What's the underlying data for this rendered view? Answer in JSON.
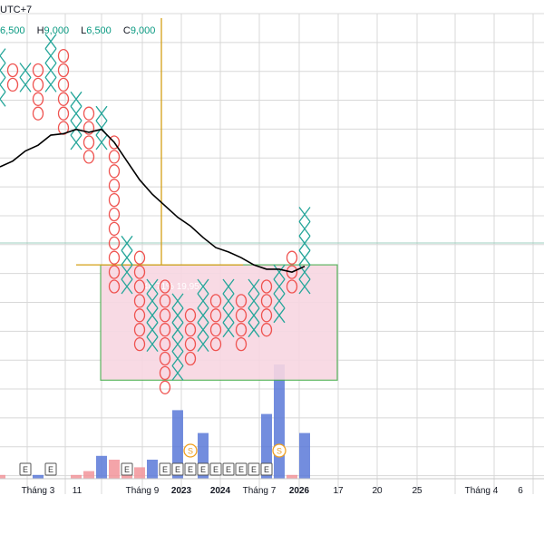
{
  "header": {
    "timezone": "UTC+7",
    "ohlc": [
      {
        "key": "",
        "value": "6,500"
      },
      {
        "key": "H",
        "value": "9,000"
      },
      {
        "key": "L",
        "value": "6,500"
      },
      {
        "key": "C",
        "value": "9,000"
      }
    ]
  },
  "rect_label": "48.71% 19,955",
  "x_axis_labels": [
    {
      "text": "Tháng 3",
      "bold": false
    },
    {
      "text": "11",
      "bold": false
    },
    {
      "text": "Tháng 9",
      "bold": false
    },
    {
      "text": "2023",
      "bold": true
    },
    {
      "text": "2024",
      "bold": true
    },
    {
      "text": "Tháng 7",
      "bold": false
    },
    {
      "text": "2026",
      "bold": true
    },
    {
      "text": "17",
      "bold": false
    },
    {
      "text": "20",
      "bold": false
    },
    {
      "text": "25",
      "bold": false
    },
    {
      "text": "Tháng 4",
      "bold": false
    },
    {
      "text": "6",
      "bold": false
    }
  ],
  "event_markers": {
    "earnings_label": "E",
    "dividend_label": "S"
  },
  "chart_data": {
    "type": "point-and-figure",
    "columns": [
      {
        "type": "X",
        "rows": [
          4,
          5,
          6,
          7
        ]
      },
      {
        "type": "O",
        "rows": [
          5,
          6
        ]
      },
      {
        "type": "X",
        "rows": [
          5,
          6
        ]
      },
      {
        "type": "O",
        "rows": [
          5,
          6,
          7,
          8
        ]
      },
      {
        "type": "X",
        "rows": [
          3,
          4,
          5,
          6
        ]
      },
      {
        "type": "O",
        "rows": [
          4,
          5,
          6,
          7,
          8,
          9
        ]
      },
      {
        "type": "X",
        "rows": [
          7,
          8,
          9,
          10
        ]
      },
      {
        "type": "O",
        "rows": [
          8,
          9,
          10,
          11
        ]
      },
      {
        "type": "X",
        "rows": [
          8,
          9,
          10
        ]
      },
      {
        "type": "O",
        "rows": [
          10,
          11,
          12,
          13,
          14,
          15,
          16,
          17,
          18,
          19,
          20
        ]
      },
      {
        "type": "X",
        "rows": [
          17,
          18,
          19,
          20
        ]
      },
      {
        "type": "O",
        "rows": [
          18,
          19,
          20,
          21,
          22,
          23,
          24
        ]
      },
      {
        "type": "X",
        "rows": [
          20,
          21,
          22,
          23,
          24
        ]
      },
      {
        "type": "O",
        "rows": [
          20,
          21,
          22,
          23,
          24,
          25,
          26,
          27
        ]
      },
      {
        "type": "X",
        "rows": [
          21,
          22,
          23,
          24,
          25,
          26
        ]
      },
      {
        "type": "O",
        "rows": [
          22,
          23,
          24,
          25
        ]
      },
      {
        "type": "X",
        "rows": [
          20,
          21,
          22,
          23,
          24
        ]
      },
      {
        "type": "O",
        "rows": [
          21,
          22,
          23,
          24
        ]
      },
      {
        "type": "X",
        "rows": [
          20,
          21,
          22,
          23
        ]
      },
      {
        "type": "O",
        "rows": [
          21,
          22,
          23,
          24
        ]
      },
      {
        "type": "X",
        "rows": [
          20,
          21,
          22,
          23
        ]
      },
      {
        "type": "O",
        "rows": [
          20,
          21,
          22,
          23
        ]
      },
      {
        "type": "X",
        "rows": [
          19,
          20,
          21,
          22
        ]
      },
      {
        "type": "O",
        "rows": [
          18,
          19,
          20
        ]
      },
      {
        "type": "X",
        "rows": [
          15,
          16,
          17,
          18,
          19,
          20
        ]
      }
    ],
    "moving_average": [
      {
        "col": 0,
        "row": 11.7
      },
      {
        "col": 1,
        "row": 11.3
      },
      {
        "col": 2,
        "row": 10.6
      },
      {
        "col": 3,
        "row": 10.2
      },
      {
        "col": 4,
        "row": 9.5
      },
      {
        "col": 5,
        "row": 9.4
      },
      {
        "col": 6,
        "row": 9.1
      },
      {
        "col": 7,
        "row": 9.3
      },
      {
        "col": 8,
        "row": 9.1
      },
      {
        "col": 9,
        "row": 10.0
      },
      {
        "col": 10,
        "row": 11.3
      },
      {
        "col": 11,
        "row": 12.6
      },
      {
        "col": 12,
        "row": 13.6
      },
      {
        "col": 13,
        "row": 14.4
      },
      {
        "col": 14,
        "row": 15.2
      },
      {
        "col": 15,
        "row": 15.8
      },
      {
        "col": 16,
        "row": 16.6
      },
      {
        "col": 17,
        "row": 17.3
      },
      {
        "col": 18,
        "row": 17.6
      },
      {
        "col": 19,
        "row": 18.0
      },
      {
        "col": 20,
        "row": 18.5
      },
      {
        "col": 21,
        "row": 18.8
      },
      {
        "col": 22,
        "row": 18.8
      },
      {
        "col": 23,
        "row": 19.0
      },
      {
        "col": 24,
        "row": 18.6
      }
    ],
    "volume": [
      {
        "col": 0,
        "value": 1,
        "dir": "down"
      },
      {
        "col": 3,
        "value": 1,
        "dir": "up"
      },
      {
        "col": 6,
        "value": 1,
        "dir": "down"
      },
      {
        "col": 7,
        "value": 2,
        "dir": "down"
      },
      {
        "col": 8,
        "value": 6,
        "dir": "up"
      },
      {
        "col": 9,
        "value": 5,
        "dir": "down"
      },
      {
        "col": 10,
        "value": 3,
        "dir": "down"
      },
      {
        "col": 11,
        "value": 3,
        "dir": "down"
      },
      {
        "col": 12,
        "value": 5,
        "dir": "up"
      },
      {
        "col": 14,
        "value": 18,
        "dir": "up"
      },
      {
        "col": 16,
        "value": 12,
        "dir": "up"
      },
      {
        "col": 21,
        "value": 17,
        "dir": "up"
      },
      {
        "col": 22,
        "value": 30,
        "dir": "up"
      },
      {
        "col": 23,
        "value": 1,
        "dir": "down"
      },
      {
        "col": 24,
        "value": 12,
        "dir": "up"
      }
    ],
    "earnings_cols": [
      2,
      4,
      10,
      13,
      14,
      15,
      16,
      17,
      18,
      19,
      20,
      21
    ],
    "dividend_cols": [
      15,
      22
    ],
    "colors": {
      "x_mark": "#26a69a",
      "o_mark": "#ef5350",
      "ma_line": "#000000",
      "up_volume": "#5b79d8",
      "down_volume": "#f2949a",
      "rect_fill": "#f8d7e2",
      "rect_border": "#4caf50",
      "crosshair": "#d4a017",
      "grid": "#d8d8d8"
    }
  }
}
